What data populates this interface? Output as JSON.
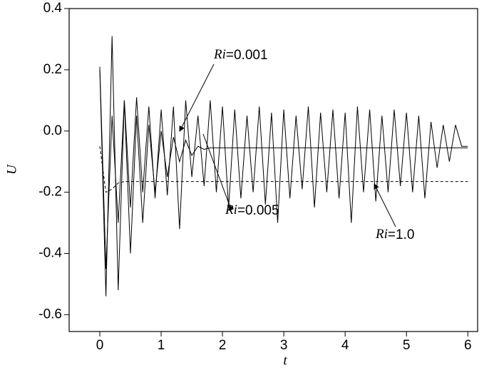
{
  "chart_data": {
    "type": "line",
    "x_label": "t",
    "y_label": "U",
    "x": [
      0,
      0.1,
      0.2,
      0.3,
      0.4,
      0.5,
      0.6,
      0.7,
      0.8,
      0.9,
      1,
      1.1,
      1.2,
      1.3,
      1.4,
      1.5,
      1.6,
      1.7,
      1.8,
      1.9,
      2,
      2.1,
      2.2,
      2.3,
      2.4,
      2.5,
      2.6,
      2.7,
      2.8,
      2.9,
      3,
      3.1,
      3.2,
      3.3,
      3.4,
      3.5,
      3.6,
      3.7,
      3.8,
      3.9,
      4,
      4.1,
      4.2,
      4.3,
      4.4,
      4.5,
      4.6,
      4.7,
      4.8,
      4.9,
      5,
      5.1,
      5.2,
      5.3,
      5.4,
      5.5,
      5.6,
      5.7,
      5.8,
      5.9,
      6
    ],
    "series": [
      {
        "name": "Ri=0.001",
        "color": "#000000",
        "line_style": "solid",
        "values": [
          0.21,
          -0.45,
          0.05,
          -0.3,
          0.1,
          -0.25,
          0.11,
          -0.2,
          0.08,
          -0.22,
          0.07,
          -0.21,
          0.08,
          -0.32,
          0.1,
          -0.15,
          0.05,
          -0.18,
          0.1,
          -0.2,
          0.08,
          -0.25,
          0.07,
          -0.22,
          0.05,
          -0.2,
          0.08,
          -0.24,
          0.06,
          -0.3,
          0.07,
          -0.22,
          0.05,
          -0.19,
          0.08,
          -0.25,
          0.06,
          -0.2,
          0.07,
          -0.22,
          0.06,
          -0.3,
          0.08,
          -0.2,
          0.07,
          -0.23,
          0.05,
          -0.2,
          0.07,
          -0.18,
          0.06,
          -0.2,
          0.05,
          -0.22,
          0.03,
          -0.12,
          0.02,
          -0.1,
          0.02,
          -0.05,
          -0.05
        ]
      },
      {
        "name": "Ri=0.005",
        "color": "#000000",
        "line_style": "solid",
        "values": [
          0.2,
          -0.54,
          0.31,
          -0.52,
          0.1,
          -0.4,
          0.05,
          -0.3,
          0.02,
          -0.2,
          0,
          -0.15,
          -0.02,
          -0.1,
          -0.03,
          -0.08,
          -0.05,
          -0.06,
          -0.055,
          -0.055,
          -0.055,
          -0.055,
          -0.055,
          -0.055,
          -0.055,
          -0.055,
          -0.055,
          -0.055,
          -0.055,
          -0.055,
          -0.055,
          -0.055,
          -0.055,
          -0.055,
          -0.055,
          -0.055,
          -0.055,
          -0.055,
          -0.055,
          -0.055,
          -0.055,
          -0.055,
          -0.055,
          -0.055,
          -0.055,
          -0.055,
          -0.055,
          -0.055,
          -0.055,
          -0.055,
          -0.055,
          -0.055,
          -0.055,
          -0.055,
          -0.055,
          -0.055,
          -0.055,
          -0.055,
          -0.055,
          -0.055,
          -0.055
        ]
      },
      {
        "name": "Ri=1.0",
        "color": "#000000",
        "line_style": "dashed",
        "values": [
          -0.05,
          -0.2,
          -0.19,
          -0.17,
          -0.165,
          -0.165,
          -0.165,
          -0.165,
          -0.165,
          -0.165,
          -0.165,
          -0.165,
          -0.165,
          -0.165,
          -0.165,
          -0.165,
          -0.165,
          -0.165,
          -0.165,
          -0.165,
          -0.165,
          -0.165,
          -0.165,
          -0.165,
          -0.165,
          -0.165,
          -0.165,
          -0.165,
          -0.165,
          -0.165,
          -0.165,
          -0.165,
          -0.165,
          -0.165,
          -0.165,
          -0.165,
          -0.165,
          -0.165,
          -0.165,
          -0.165,
          -0.165,
          -0.165,
          -0.165,
          -0.165,
          -0.165,
          -0.165,
          -0.165,
          -0.165,
          -0.165,
          -0.165,
          -0.165,
          -0.165,
          -0.165,
          -0.165,
          -0.165,
          -0.165,
          -0.165,
          -0.165,
          -0.165,
          -0.165,
          -0.165
        ]
      }
    ],
    "xlim": [
      -0.5,
      6.16
    ],
    "ylim": [
      -0.655,
      0.4
    ],
    "xticks": [
      0,
      1,
      2,
      3,
      4,
      5,
      6
    ],
    "yticks": [
      -0.6,
      -0.4,
      -0.2,
      {
        "value": 0,
        "label": "0.0"
      },
      0.2,
      0.4
    ],
    "grid": false
  }
}
